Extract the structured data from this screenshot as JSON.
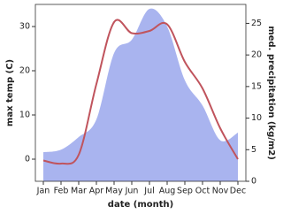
{
  "chart_data": {
    "type": "line-area",
    "x_label": "date (month)",
    "y_label": "max temp (C)",
    "y2_label": "med. precipitation (kg/m2)",
    "categories": [
      "Jan",
      "Feb",
      "Mar",
      "Apr",
      "May",
      "Jun",
      "Jul",
      "Aug",
      "Sep",
      "Oct",
      "Nov",
      "Dec"
    ],
    "ylim": [
      -5,
      35
    ],
    "yticks": [
      0,
      10,
      20,
      30
    ],
    "y2lim": [
      0,
      28
    ],
    "y2ticks": [
      0,
      5,
      10,
      15,
      20,
      25
    ],
    "series": [
      {
        "name": "med. precipitation",
        "axis": "y2",
        "kind": "area",
        "color": "#a9b4ef",
        "values": [
          4.6,
          5,
          7,
          9.8,
          20.3,
          22.4,
          27.3,
          24.5,
          16,
          12,
          6.5,
          7.7
        ]
      },
      {
        "name": "max temp",
        "kind": "line",
        "color": "#c0545d",
        "values": [
          -0.3,
          -1,
          1,
          17,
          31,
          28.5,
          29,
          30.5,
          22,
          16,
          7,
          0
        ]
      }
    ]
  }
}
